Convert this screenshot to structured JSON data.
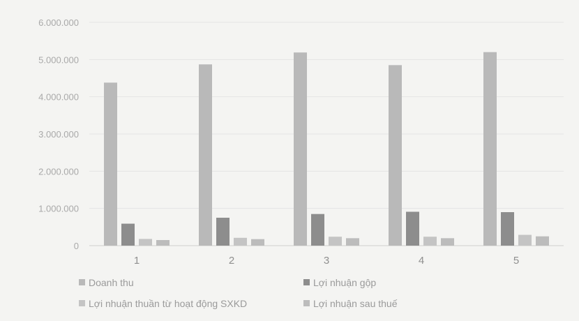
{
  "chart_data": {
    "type": "bar",
    "categories": [
      "1",
      "2",
      "3",
      "4",
      "5"
    ],
    "series": [
      {
        "name": "Doanh thu",
        "color": "#b9b9b9",
        "values": [
          4380000,
          4870000,
          5190000,
          4850000,
          5200000
        ]
      },
      {
        "name": "Lợi nhuận gộp",
        "color": "#8d8d8d",
        "values": [
          590000,
          750000,
          850000,
          910000,
          900000
        ]
      },
      {
        "name": "Lợi nhuận thuần từ hoạt động SXKD",
        "color": "#c4c4c4",
        "values": [
          180000,
          210000,
          240000,
          240000,
          290000
        ]
      },
      {
        "name": "Lợi nhuận sau thuế",
        "color": "#bcbcbc",
        "values": [
          150000,
          175000,
          200000,
          200000,
          250000
        ]
      }
    ],
    "y_ticks": [
      "0",
      "1.000.000",
      "2.000.000",
      "3.000.000",
      "4.000.000",
      "5.000.000",
      "6.000.000"
    ],
    "ylim": [
      0,
      6000000
    ],
    "grid": true,
    "legend_position": "bottom"
  }
}
